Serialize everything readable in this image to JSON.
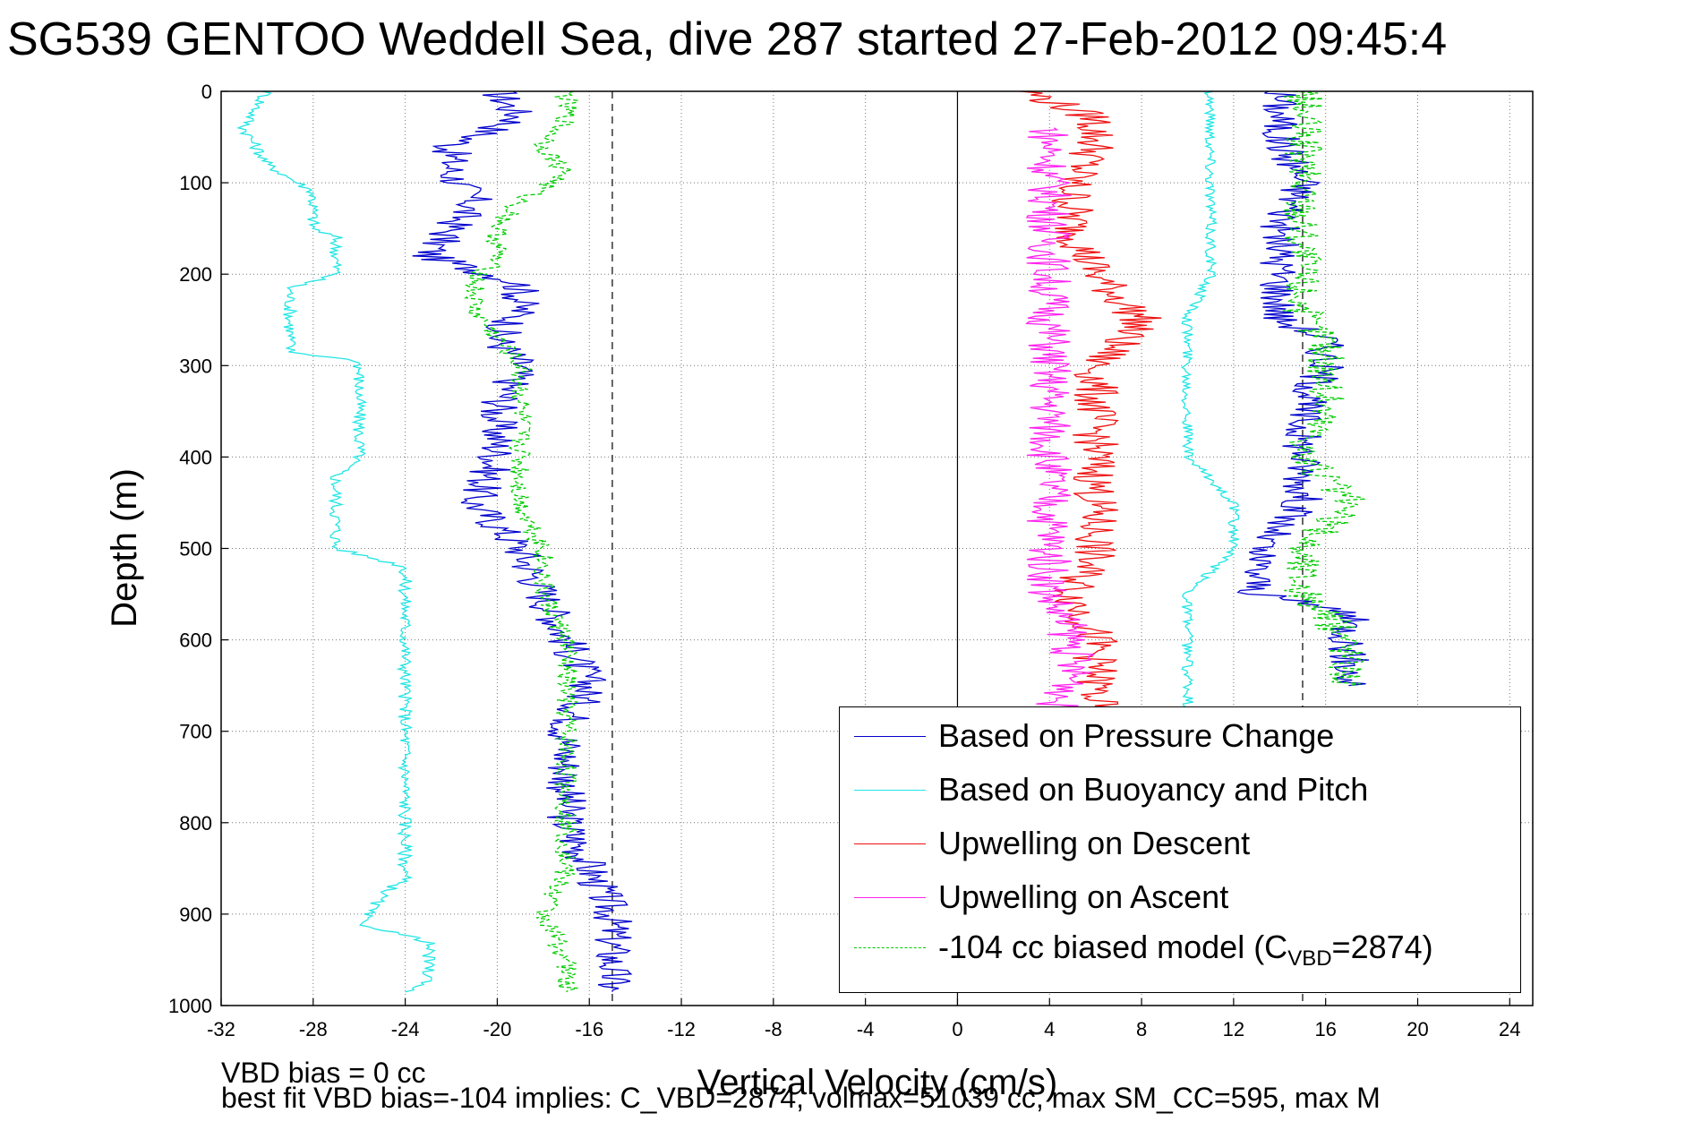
{
  "title": "SG539 GENTOO Weddell Sea, dive 287 started 27-Feb-2012 09:45:4",
  "notes": {
    "bias": "VBD bias = 0 cc",
    "best_fit": "best fit VBD bias=-104 implies: C_VBD=2874, volmax=51039 cc, max SM_CC=595, max M"
  },
  "legend": {
    "items": [
      {
        "label": "Based on Pressure Change",
        "color": "#0000cc",
        "dash": false
      },
      {
        "label": "Based on Buoyancy and Pitch",
        "color": "#22e5e5",
        "dash": false
      },
      {
        "label": "Upwelling on Descent",
        "color": "#ee1111",
        "dash": false
      },
      {
        "label": "Upwelling on Ascent",
        "color": "#ff22ee",
        "dash": false
      }
    ],
    "model": {
      "prefix": "-104 cc biased model (C",
      "sub": "VBD",
      "suffix": "=2874)",
      "color": "#00cc00"
    }
  },
  "chart_data": {
    "type": "line",
    "title": "SG539 GENTOO Weddell Sea, dive 287 started 27-Feb-2012 09:45:4",
    "xlabel": "Vertical Velocity (cm/s)",
    "ylabel": "Depth (m)",
    "xlim": [
      -32,
      25
    ],
    "ylim": [
      1000,
      0
    ],
    "y_reversed": true,
    "xticks": [
      -32,
      -28,
      -24,
      -20,
      -16,
      -12,
      -8,
      -4,
      0,
      4,
      8,
      12,
      16,
      20,
      24
    ],
    "yticks": [
      0,
      100,
      200,
      300,
      400,
      500,
      600,
      700,
      800,
      900,
      1000
    ],
    "grid": true,
    "legend_position": "bottom-right",
    "reference_lines": {
      "dashed_x": [
        -15,
        15
      ],
      "solid_x": [
        0
      ]
    },
    "series": [
      {
        "name": "Based on Pressure Change",
        "color": "#0000cc",
        "depth": [
          0,
          30,
          60,
          90,
          120,
          150,
          180,
          210,
          240,
          270,
          300,
          350,
          400,
          450,
          500,
          550,
          600,
          650,
          700,
          750,
          800,
          850,
          900,
          950,
          985
        ],
        "x": [
          -20,
          -19,
          -22,
          -22,
          -21,
          -22,
          -23,
          -19,
          -19,
          -20,
          -19,
          -20,
          -20,
          -21,
          -19,
          -18,
          -17,
          -16,
          -17,
          -17,
          -17,
          -16,
          -15,
          -15,
          -15
        ]
      },
      {
        "name": "Based on Buoyancy and Pitch",
        "color": "#22e5e5",
        "depth": [
          0,
          40,
          80,
          110,
          150,
          160,
          200,
          215,
          250,
          285,
          295,
          350,
          400,
          420,
          450,
          500,
          520,
          560,
          600,
          700,
          800,
          860,
          880,
          910,
          930,
          975,
          985
        ],
        "x": [
          -30,
          -31,
          -30,
          -28,
          -28,
          -27,
          -27,
          -29,
          -29,
          -29,
          -26,
          -26,
          -26,
          -27,
          -27,
          -27,
          -24,
          -24,
          -24,
          -24,
          -24,
          -24,
          -25,
          -26,
          -23,
          -23,
          -24
        ]
      },
      {
        "name": "Upwelling on Descent",
        "color": "#ee1111",
        "depth": [
          0,
          30,
          60,
          100,
          150,
          200,
          250,
          300,
          350,
          400,
          450,
          500,
          550,
          600,
          650,
          680
        ],
        "x": [
          3,
          6,
          6,
          5,
          5,
          6,
          8,
          6,
          6,
          6,
          6,
          6,
          5,
          6,
          6,
          6
        ]
      },
      {
        "name": "Upwelling on Ascent",
        "color": "#ff22ee",
        "depth": [
          40,
          100,
          150,
          200,
          250,
          300,
          350,
          400,
          450,
          500,
          550,
          600,
          650,
          680
        ],
        "x": [
          4,
          4,
          4,
          4,
          4,
          4,
          4,
          4,
          4,
          4,
          4,
          5,
          5,
          4
        ]
      },
      {
        "name": "-104 cc biased model (C_VBD=2874)",
        "color": "#00cc00",
        "dashed": true,
        "depth": [
          0,
          30,
          60,
          90,
          120,
          150,
          180,
          210,
          240,
          270,
          300,
          350,
          400,
          450,
          500,
          550,
          600,
          650,
          700,
          750,
          800,
          850,
          900,
          950,
          985
        ],
        "x": [
          -17,
          -17,
          -18,
          -17,
          -19,
          -20,
          -20,
          -21,
          -21,
          -20,
          -19,
          -19,
          -19,
          -19,
          -18,
          -18,
          -17,
          -17,
          -17,
          -17,
          -17,
          -17,
          -18,
          -17,
          -17
        ]
      }
    ],
    "right_group": [
      {
        "color": "#0000cc",
        "depth": [
          0,
          50,
          100,
          150,
          200,
          250,
          270,
          300,
          350,
          400,
          450,
          500,
          550,
          570,
          600,
          650
        ],
        "x": [
          14,
          14,
          15,
          14,
          14,
          14,
          16,
          16,
          15,
          15,
          15,
          13,
          13,
          17,
          17,
          17
        ]
      },
      {
        "color": "#22e5e5",
        "depth": [
          0,
          50,
          100,
          150,
          200,
          250,
          270,
          300,
          350,
          400,
          450,
          500,
          550,
          600,
          650,
          680
        ],
        "x": [
          11,
          11,
          11,
          11,
          11,
          10,
          10,
          10,
          10,
          10,
          12,
          12,
          10,
          10,
          10,
          10
        ]
      },
      {
        "color": "#00cc00",
        "dashed": true,
        "depth": [
          0,
          50,
          100,
          150,
          200,
          250,
          270,
          300,
          350,
          400,
          450,
          500,
          550,
          600,
          650
        ],
        "x": [
          15,
          15,
          15,
          15,
          15,
          15,
          16,
          16,
          16,
          15,
          17,
          15,
          15,
          17,
          17
        ]
      }
    ]
  }
}
